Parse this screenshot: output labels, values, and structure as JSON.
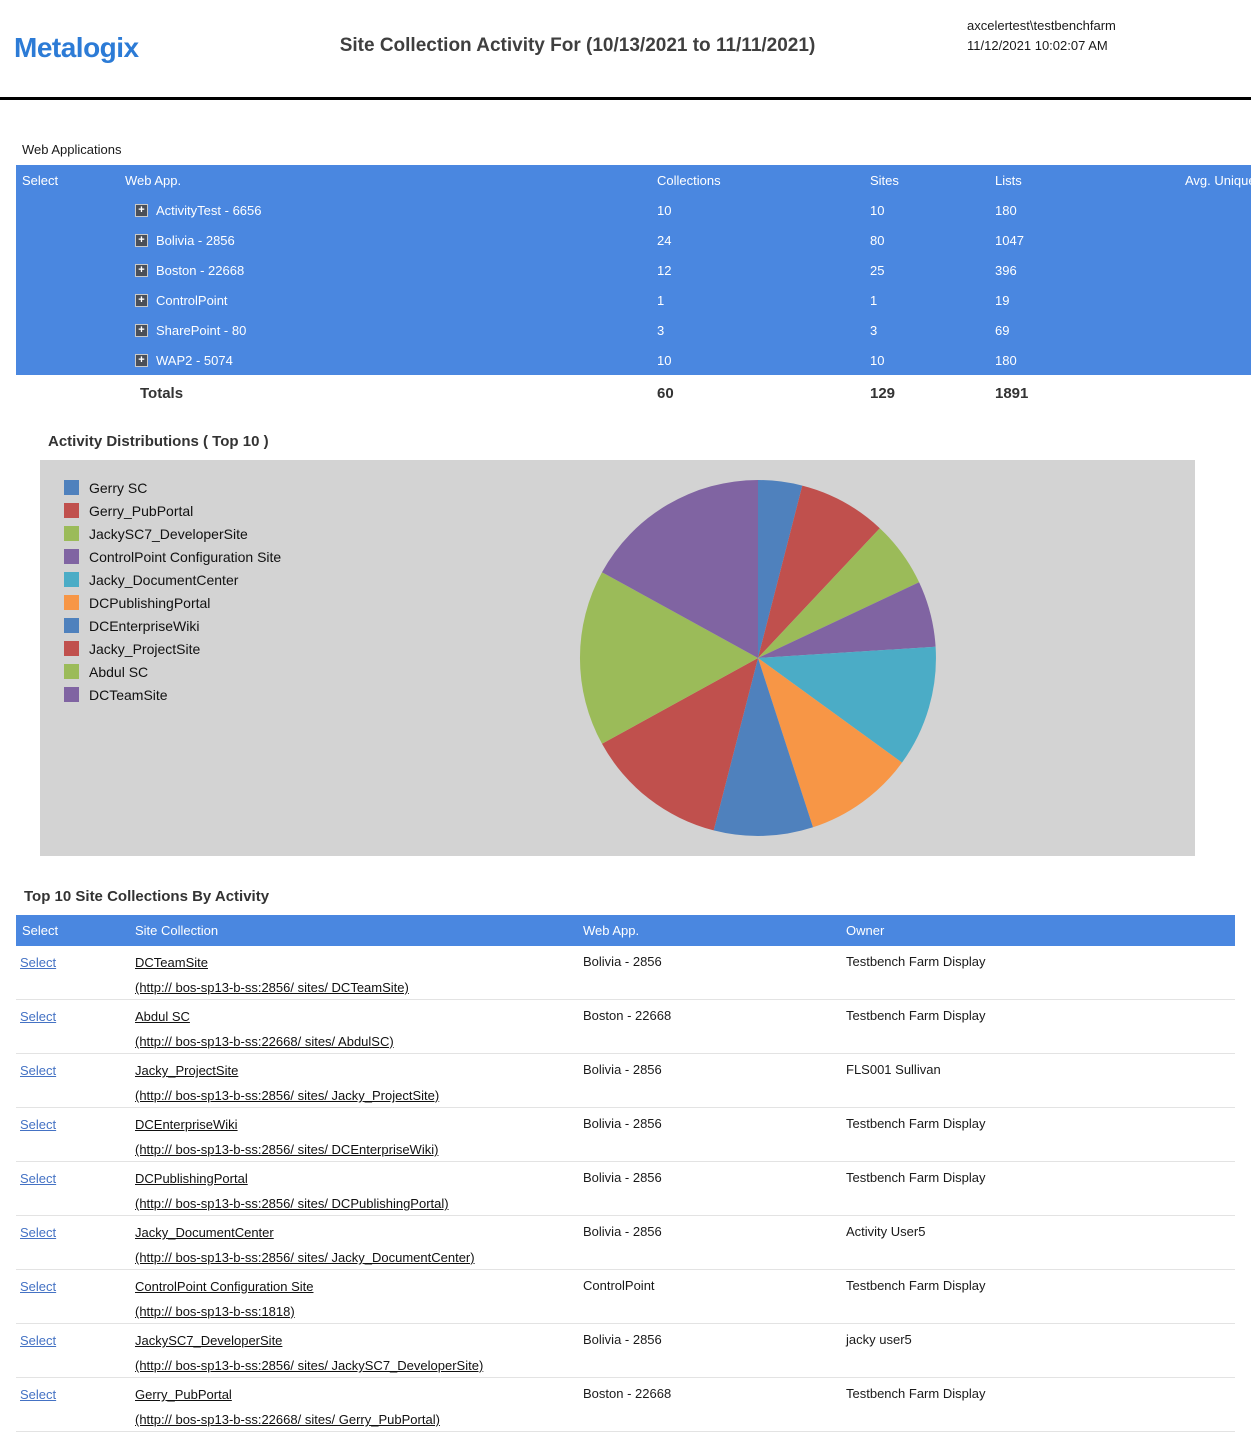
{
  "header": {
    "logo": "Metalogix",
    "title": "Site Collection Activity For (10/13/2021 to 11/11/2021)",
    "user": "axcelertest\\testbenchfarm",
    "timestamp": "11/12/2021 10:02:07 AM"
  },
  "web_applications": {
    "section_label": "Web Applications",
    "columns": [
      "Select",
      "Web App.",
      "Collections",
      "Sites",
      "Lists",
      "Avg. Unique"
    ],
    "rows": [
      {
        "name": "ActivityTest - 6656",
        "collections": "10",
        "sites": "10",
        "lists": "180"
      },
      {
        "name": "Bolivia - 2856",
        "collections": "24",
        "sites": "80",
        "lists": "1047"
      },
      {
        "name": "Boston - 22668",
        "collections": "12",
        "sites": "25",
        "lists": "396"
      },
      {
        "name": "ControlPoint",
        "collections": "1",
        "sites": "1",
        "lists": "19"
      },
      {
        "name": "SharePoint - 80",
        "collections": "3",
        "sites": "3",
        "lists": "69"
      },
      {
        "name": "WAP2 - 5074",
        "collections": "10",
        "sites": "10",
        "lists": "180"
      }
    ],
    "totals": {
      "label": "Totals",
      "collections": "60",
      "sites": "129",
      "lists": "1891"
    }
  },
  "activity_distributions": {
    "title": "Activity Distributions ( Top 10 )"
  },
  "chart_data": {
    "type": "pie",
    "title": "Activity Distributions ( Top 10 )",
    "legend_position": "top-left",
    "labels": [
      "Gerry SC",
      "Gerry_PubPortal",
      "JackySC7_DeveloperSite",
      "ControlPoint Configuration Site",
      "Jacky_DocumentCenter",
      "DCPublishingPortal",
      "DCEnterpriseWiki",
      "Jacky_ProjectSite",
      "Abdul SC",
      "DCTeamSite"
    ],
    "values": [
      4,
      8,
      6,
      6,
      11,
      10,
      9,
      13,
      16,
      17
    ],
    "colors": [
      "#4F81BD",
      "#C0504D",
      "#9BBB59",
      "#8064A2",
      "#4BACC6",
      "#F79646",
      "#4F81BD",
      "#C0504D",
      "#9BBB59",
      "#8064A2"
    ],
    "background": "#d3d3d3",
    "start_angle_deg": -90,
    "direction": "clockwise"
  },
  "top_site_collections": {
    "title": "Top 10 Site Collections By Activity",
    "columns": [
      "Select",
      "Site Collection",
      "Web App.",
      "Owner"
    ],
    "select_label": "Select",
    "rows": [
      {
        "name": "DCTeamSite",
        "url": "(http:// bos-sp13-b-ss:2856/ sites/ DCTeamSite)",
        "web_app": "Bolivia - 2856",
        "owner": "Testbench Farm Display"
      },
      {
        "name": "Abdul SC",
        "url": "(http:// bos-sp13-b-ss:22668/ sites/ AbdulSC)",
        "web_app": "Boston - 22668",
        "owner": "Testbench Farm Display"
      },
      {
        "name": "Jacky_ProjectSite",
        "url": "(http:// bos-sp13-b-ss:2856/ sites/ Jacky_ProjectSite)",
        "web_app": "Bolivia - 2856",
        "owner": "FLS001 Sullivan"
      },
      {
        "name": "DCEnterpriseWiki",
        "url": "(http:// bos-sp13-b-ss:2856/ sites/ DCEnterpriseWiki)",
        "web_app": "Bolivia - 2856",
        "owner": "Testbench Farm Display"
      },
      {
        "name": "DCPublishingPortal",
        "url": "(http:// bos-sp13-b-ss:2856/ sites/ DCPublishingPortal)",
        "web_app": "Bolivia - 2856",
        "owner": "Testbench Farm Display"
      },
      {
        "name": "Jacky_DocumentCenter",
        "url": "(http:// bos-sp13-b-ss:2856/ sites/ Jacky_DocumentCenter)",
        "web_app": "Bolivia - 2856",
        "owner": "Activity User5"
      },
      {
        "name": "ControlPoint Configuration Site",
        "url": "(http:// bos-sp13-b-ss:1818)",
        "web_app": "ControlPoint",
        "owner": "Testbench Farm Display"
      },
      {
        "name": "JackySC7_DeveloperSite",
        "url": "(http:// bos-sp13-b-ss:2856/ sites/ JackySC7_DeveloperSite)",
        "web_app": "Bolivia - 2856",
        "owner": "jacky user5"
      },
      {
        "name": "Gerry_PubPortal",
        "url": "(http:// bos-sp13-b-ss:22668/ sites/ Gerry_PubPortal)",
        "web_app": "Boston - 22668",
        "owner": "Testbench Farm Display"
      }
    ]
  },
  "colors": {
    "table_header_blue": "#4a87e0",
    "accent_blue": "#2c7bd6"
  }
}
